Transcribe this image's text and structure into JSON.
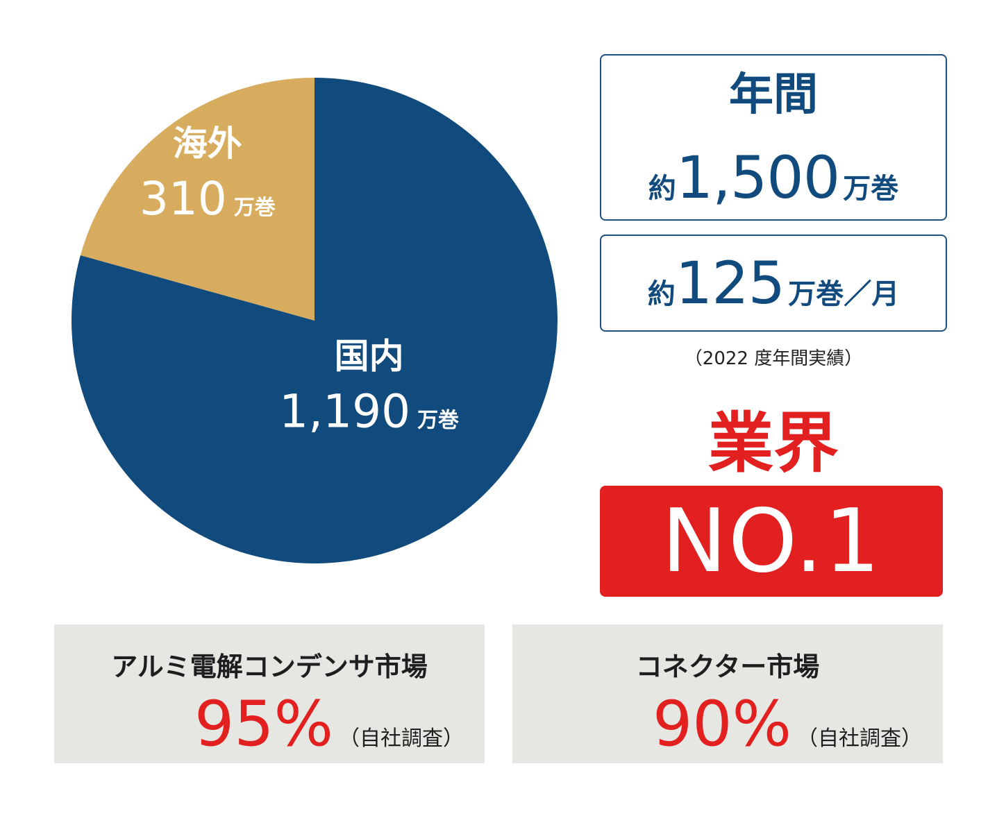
{
  "chart_data": {
    "type": "pie",
    "unit": "万巻",
    "slices": [
      {
        "name": "国内",
        "value": 1190,
        "value_label": "1,190",
        "color": "#114a7c"
      },
      {
        "name": "海外",
        "value": 310,
        "value_label": "310",
        "color": "#d8ac5f"
      }
    ]
  },
  "annual": {
    "title": "年間",
    "approx": "約",
    "value": "1,500",
    "unit": "万巻"
  },
  "monthly": {
    "approx": "約",
    "value": "125",
    "unit": "万巻／月"
  },
  "note": "（2022 度年間実績）",
  "industry": {
    "label": "業界",
    "badge": "NO.1"
  },
  "markets": [
    {
      "title": "アルミ電解コンデンサ市場",
      "value": "95%",
      "note": "（自社調査）"
    },
    {
      "title": "コネクター市場",
      "value": "90%",
      "note": "（自社調査）"
    }
  ],
  "colors": {
    "navy": "#114a7c",
    "gold": "#d8ac5f",
    "red": "#e1201f",
    "panel": "#e6e6e3"
  }
}
